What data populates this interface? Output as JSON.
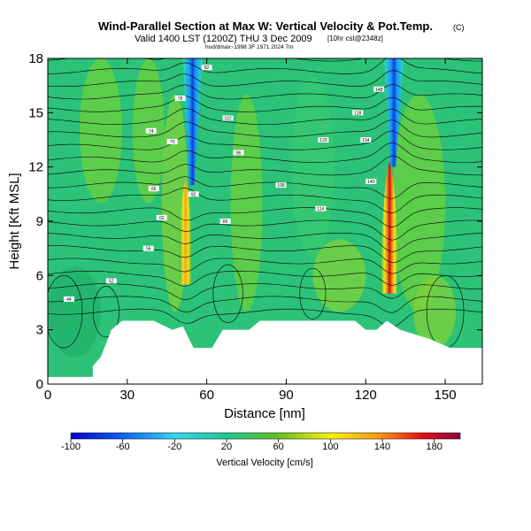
{
  "chart_data": {
    "type": "heatmap",
    "title": "Wind-Parallel Section at Max W: Vertical Velocity & Pot.Temp.",
    "title_mark": "(C)",
    "subtitle": "Valid 1400 LST (1200Z) THU 3 Dec 2009",
    "subtitle_note": "[10hr cst@2348z]",
    "subtitle2": "hod/dmax~1998 3F 1971 2024 7m",
    "xlabel": "Distance [nm]",
    "ylabel": "Height [Kft MSL]",
    "xlim": [
      0,
      164
    ],
    "ylim": [
      0,
      18
    ],
    "x_ticks": [
      "0",
      "30",
      "60",
      "90",
      "120",
      "150"
    ],
    "y_ticks": [
      "0",
      "3",
      "6",
      "9",
      "12",
      "15",
      "18"
    ],
    "colorbar": {
      "label": "Vertical Velocity [cm/s]",
      "ticks": [
        "-100",
        "-60",
        "-20",
        "20",
        "60",
        "100",
        "140",
        "180"
      ],
      "min": -100,
      "max": 200
    },
    "updrafts": [
      {
        "x": 52,
        "y_low": 5.5,
        "y_high": 11,
        "peak_cm_s": 100
      },
      {
        "x": 129,
        "y_low": 5,
        "y_high": 12,
        "peak_cm_s": 200
      }
    ],
    "downdrafts": [
      {
        "x": 54,
        "y_low": 11,
        "y_high": 18,
        "min_cm_s": -100
      },
      {
        "x": 130,
        "y_low": 12,
        "y_high": 18,
        "min_cm_s": -100
      }
    ],
    "terrain_top_kft": [
      [
        0,
        0.4
      ],
      [
        17,
        0.4
      ],
      [
        17,
        1.0
      ],
      [
        20,
        1.5
      ],
      [
        24,
        3.0
      ],
      [
        28,
        3.5
      ],
      [
        40,
        3.5
      ],
      [
        47,
        3.0
      ],
      [
        51,
        3.2
      ],
      [
        55,
        2.0
      ],
      [
        62,
        2.0
      ],
      [
        66,
        3.0
      ],
      [
        76,
        3.0
      ],
      [
        80,
        3.5
      ],
      [
        116,
        3.5
      ],
      [
        120,
        3.0
      ],
      [
        124,
        3.0
      ],
      [
        128,
        3.5
      ],
      [
        133,
        3.0
      ],
      [
        144,
        2.5
      ],
      [
        152,
        2.0
      ],
      [
        158,
        2.0
      ],
      [
        164,
        2.0
      ]
    ],
    "contour_labels": [
      "44",
      "52",
      "56",
      "62",
      "66",
      "70",
      "74",
      "78",
      "82",
      "86",
      "92",
      "96",
      "102",
      "108",
      "114",
      "120",
      "128",
      "134",
      "140",
      "148"
    ]
  }
}
